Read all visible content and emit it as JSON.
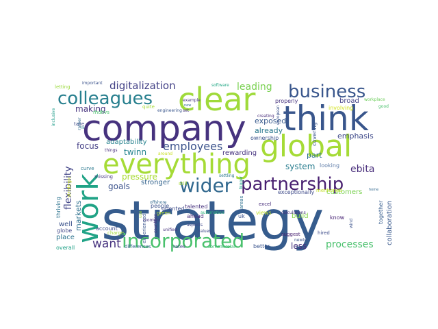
{
  "words": [
    {
      "text": "strategy",
      "color": "#365c8d"
    },
    {
      "text": "company",
      "color": "#46327e"
    },
    {
      "text": "think",
      "color": "#39568c"
    },
    {
      "text": "clear",
      "color": "#9fda3a"
    },
    {
      "text": "global",
      "color": "#a5db36"
    },
    {
      "text": "everything",
      "color": "#a5db36"
    },
    {
      "text": "work",
      "color": "#20a386"
    },
    {
      "text": "incorporated",
      "color": "#4ac16d"
    },
    {
      "text": "partnership",
      "color": "#481f70"
    },
    {
      "text": "wider",
      "color": "#31688e"
    },
    {
      "text": "colleagues",
      "color": "#277f8e"
    },
    {
      "text": "business",
      "color": "#39568c"
    },
    {
      "text": "employees",
      "color": "#3b528b"
    },
    {
      "text": "digitalization",
      "color": "#424086"
    },
    {
      "text": "processes",
      "color": "#4ac16d"
    },
    {
      "text": "want",
      "color": "#46327e"
    },
    {
      "text": "ebita",
      "color": "#472c7a"
    },
    {
      "text": "flexibility",
      "color": "#414487"
    },
    {
      "text": "leading",
      "color": "#7ad151"
    },
    {
      "text": "system",
      "color": "#287c8e"
    },
    {
      "text": "pressure",
      "color": "#a8db34"
    },
    {
      "text": "twinn",
      "color": "#25838e"
    },
    {
      "text": "goals",
      "color": "#3b528b"
    },
    {
      "text": "emphasis",
      "color": "#3e4989"
    },
    {
      "text": "making",
      "color": "#46327e"
    },
    {
      "text": "focus",
      "color": "#433e85"
    },
    {
      "text": "part",
      "color": "#2c728e"
    },
    {
      "text": "less",
      "color": "#46327e"
    },
    {
      "text": "exposed",
      "color": "#38598c"
    },
    {
      "text": "already",
      "color": "#2a788e"
    },
    {
      "text": "rewarding",
      "color": "#46337f"
    },
    {
      "text": "adaptability",
      "color": "#26828e"
    },
    {
      "text": "stronger",
      "color": "#33638d"
    },
    {
      "text": "markets",
      "color": "#2d708e"
    },
    {
      "text": "broad",
      "color": "#424086"
    },
    {
      "text": "collaboration",
      "color": "#38588c"
    },
    {
      "text": "customers",
      "color": "#7ad151"
    },
    {
      "text": "build",
      "color": "#86d549"
    },
    {
      "text": "properly",
      "color": "#46327e"
    },
    {
      "text": "ownership",
      "color": "#3b528b"
    },
    {
      "text": "looking",
      "color": "#5e7ca8"
    },
    {
      "text": "covering",
      "color": "#39558c"
    },
    {
      "text": "involving",
      "color": "#d2e21b"
    },
    {
      "text": "mentioned",
      "color": "#c2df23"
    },
    {
      "text": "exceptionally",
      "color": "#3e4a89"
    },
    {
      "text": "together",
      "color": "#365d8d"
    },
    {
      "text": "talented",
      "color": "#46327e"
    },
    {
      "text": "ahead",
      "color": "#472d7b"
    },
    {
      "text": "oriented",
      "color": "#3e4c8a"
    },
    {
      "text": "people",
      "color": "#3b528b"
    },
    {
      "text": "place",
      "color": "#2c728e"
    },
    {
      "text": "well",
      "color": "#3b528b"
    },
    {
      "text": "overall",
      "color": "#1fa187"
    },
    {
      "text": "account",
      "color": "#3e4a89"
    },
    {
      "text": "differences",
      "color": "#33638d"
    },
    {
      "text": "rates",
      "color": "#404588"
    },
    {
      "text": "commercial",
      "color": "#3dbc74"
    },
    {
      "text": "better",
      "color": "#3a548c"
    },
    {
      "text": "views",
      "color": "#bddf26"
    },
    {
      "text": "know",
      "color": "#482475"
    },
    {
      "text": "hired",
      "color": "#3e4c8a"
    },
    {
      "text": "excel",
      "color": "#472d7b"
    },
    {
      "text": "uk",
      "color": "#3b528b"
    },
    {
      "text": "areas",
      "color": "#2d708e"
    },
    {
      "text": "green",
      "color": "#b5de2b"
    },
    {
      "text": "unified",
      "color": "#46327e"
    },
    {
      "text": "aspects",
      "color": "#3e4989"
    },
    {
      "text": "charge",
      "color": "#a0da39"
    },
    {
      "text": "experienced",
      "color": "#39568c"
    },
    {
      "text": "globe",
      "color": "#404688"
    },
    {
      "text": "thriving",
      "color": "#2c728e"
    },
    {
      "text": "strategic",
      "color": "#cae11f"
    },
    {
      "text": "curve",
      "color": "#2a788e"
    },
    {
      "text": "missing",
      "color": "#453781"
    },
    {
      "text": "around",
      "color": "#c8e020"
    },
    {
      "text": "things",
      "color": "#472d7b"
    },
    {
      "text": "take",
      "color": "#3e4989"
    },
    {
      "text": "rather",
      "color": "#31688e"
    },
    {
      "text": "nl",
      "color": "#25838e"
    },
    {
      "text": "rhdhvs",
      "color": "#4ac16d"
    },
    {
      "text": "quite",
      "color": "#a5db36"
    },
    {
      "text": "letting",
      "color": "#9bd93c"
    },
    {
      "text": "important",
      "color": "#3b528b"
    },
    {
      "text": "inclusive",
      "color": "#1e9c89"
    },
    {
      "text": "software",
      "color": "#22a785"
    },
    {
      "text": "example",
      "color": "#46327e"
    },
    {
      "text": "new",
      "color": "#31688e"
    },
    {
      "text": "set",
      "color": "#46327e"
    },
    {
      "text": "engineering",
      "color": "#39568c"
    },
    {
      "text": "european",
      "color": "#3b528b"
    },
    {
      "text": "creating",
      "color": "#472d7b"
    },
    {
      "text": "workplace",
      "color": "#6ccd5a"
    },
    {
      "text": "good",
      "color": "#4ac16d"
    },
    {
      "text": "calculations",
      "color": "#46327e"
    },
    {
      "text": "suggest",
      "color": "#481f70"
    },
    {
      "text": "newly",
      "color": "#3b528b"
    },
    {
      "text": "wind",
      "color": "#3b528b"
    },
    {
      "text": "automation",
      "color": "#2fb47c"
    },
    {
      "text": "values",
      "color": "#3e4989"
    },
    {
      "text": "countries",
      "color": "#46327e"
    },
    {
      "text": "moment",
      "color": "#46327e"
    },
    {
      "text": "offshore",
      "color": "#31688e"
    },
    {
      "text": "use",
      "color": "#a2da37"
    },
    {
      "text": "settling",
      "color": "#2a788e"
    },
    {
      "text": "still",
      "color": "#a8db34"
    },
    {
      "text": "bigger",
      "color": "#1fa187"
    },
    {
      "text": "home",
      "color": "#31688e"
    }
  ]
}
